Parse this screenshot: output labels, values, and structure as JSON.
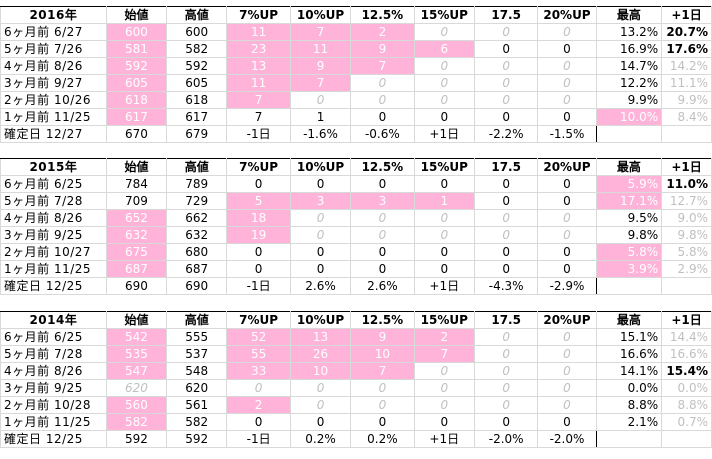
{
  "headers": [
    "始値",
    "高値",
    "7%UP",
    "10%UP",
    "12.5%",
    "15%UP",
    "17.5",
    "20%UP",
    "最高",
    "+1日"
  ],
  "blocks": [
    {
      "year": "2016年",
      "rows": [
        {
          "label": "6ヶ月前  6/27",
          "cells": [
            {
              "v": "600",
              "s": "pk"
            },
            {
              "v": "600"
            },
            {
              "v": "11",
              "s": "pk"
            },
            {
              "v": "7",
              "s": "pk"
            },
            {
              "v": "2",
              "s": "pk"
            },
            {
              "v": "0",
              "s": "it"
            },
            {
              "v": "0",
              "s": "it"
            },
            {
              "v": "0",
              "s": "it"
            },
            {
              "v": "13.2%",
              "s": "rt"
            },
            {
              "v": "20.7%",
              "s": "bd rt"
            }
          ]
        },
        {
          "label": "5ヶ月前  7/26",
          "cells": [
            {
              "v": "581",
              "s": "pk"
            },
            {
              "v": "582"
            },
            {
              "v": "23",
              "s": "pk"
            },
            {
              "v": "11",
              "s": "pk"
            },
            {
              "v": "9",
              "s": "pk"
            },
            {
              "v": "6",
              "s": "pk"
            },
            {
              "v": "0"
            },
            {
              "v": "0"
            },
            {
              "v": "16.9%",
              "s": "rt"
            },
            {
              "v": "17.6%",
              "s": "bd rt"
            }
          ]
        },
        {
          "label": "4ヶ月前  8/26",
          "cells": [
            {
              "v": "592",
              "s": "pk"
            },
            {
              "v": "592"
            },
            {
              "v": "13",
              "s": "pk"
            },
            {
              "v": "9",
              "s": "pk"
            },
            {
              "v": "7",
              "s": "pk"
            },
            {
              "v": "0",
              "s": "it"
            },
            {
              "v": "0",
              "s": "it"
            },
            {
              "v": "0",
              "s": "it"
            },
            {
              "v": "14.7%",
              "s": "rt"
            },
            {
              "v": "14.2%",
              "s": "gr rt"
            }
          ]
        },
        {
          "label": "3ヶ月前  9/27",
          "cells": [
            {
              "v": "605",
              "s": "pk"
            },
            {
              "v": "605"
            },
            {
              "v": "11",
              "s": "pk"
            },
            {
              "v": "7",
              "s": "pk"
            },
            {
              "v": "0",
              "s": "it"
            },
            {
              "v": "0",
              "s": "it"
            },
            {
              "v": "0",
              "s": "it"
            },
            {
              "v": "0",
              "s": "it"
            },
            {
              "v": "12.2%",
              "s": "rt"
            },
            {
              "v": "11.1%",
              "s": "gr rt"
            }
          ]
        },
        {
          "label": "2ヶ月前 10/26",
          "cells": [
            {
              "v": "618",
              "s": "pk"
            },
            {
              "v": "618"
            },
            {
              "v": "7",
              "s": "pk"
            },
            {
              "v": "0",
              "s": "it"
            },
            {
              "v": "0",
              "s": "it"
            },
            {
              "v": "0",
              "s": "it"
            },
            {
              "v": "0",
              "s": "it"
            },
            {
              "v": "0",
              "s": "it"
            },
            {
              "v": "9.9%",
              "s": "rt"
            },
            {
              "v": "9.9%",
              "s": "gr rt"
            }
          ]
        },
        {
          "label": "1ヶ月前 11/25",
          "cells": [
            {
              "v": "617",
              "s": "pk"
            },
            {
              "v": "617"
            },
            {
              "v": "7",
              "s": "box"
            },
            {
              "v": "1",
              "s": "box"
            },
            {
              "v": "0"
            },
            {
              "v": "0"
            },
            {
              "v": "0"
            },
            {
              "v": "0"
            },
            {
              "v": "10.0%",
              "s": "pk rt"
            },
            {
              "v": "8.4%",
              "s": "gr rt"
            }
          ]
        }
      ],
      "final": {
        "label": "確定日  12/27",
        "cells": [
          "670",
          "679",
          "-1日",
          "-1.6%",
          "-0.6%",
          "+1日",
          "-2.2%",
          "-1.5%",
          "",
          ""
        ]
      }
    },
    {
      "year": "2015年",
      "rows": [
        {
          "label": "6ヶ月前  6/25",
          "cells": [
            {
              "v": "784"
            },
            {
              "v": "789"
            },
            {
              "v": "0"
            },
            {
              "v": "0"
            },
            {
              "v": "0"
            },
            {
              "v": "0"
            },
            {
              "v": "0"
            },
            {
              "v": "0"
            },
            {
              "v": "5.9%",
              "s": "pk rt"
            },
            {
              "v": "11.0%",
              "s": "bd rt"
            }
          ]
        },
        {
          "label": "5ヶ月前  7/28",
          "cells": [
            {
              "v": "709"
            },
            {
              "v": "729"
            },
            {
              "v": "5",
              "s": "pk"
            },
            {
              "v": "3",
              "s": "pk"
            },
            {
              "v": "3",
              "s": "pk"
            },
            {
              "v": "1",
              "s": "pk"
            },
            {
              "v": "0"
            },
            {
              "v": "0"
            },
            {
              "v": "17.1%",
              "s": "pk rt"
            },
            {
              "v": "12.7%",
              "s": "gr rt"
            }
          ]
        },
        {
          "label": "4ヶ月前  8/26",
          "cells": [
            {
              "v": "652",
              "s": "pk"
            },
            {
              "v": "662"
            },
            {
              "v": "18",
              "s": "pk"
            },
            {
              "v": "0",
              "s": "it"
            },
            {
              "v": "0",
              "s": "it"
            },
            {
              "v": "0",
              "s": "it"
            },
            {
              "v": "0",
              "s": "it"
            },
            {
              "v": "0",
              "s": "it"
            },
            {
              "v": "9.5%",
              "s": "rt"
            },
            {
              "v": "9.0%",
              "s": "gr rt"
            }
          ]
        },
        {
          "label": "3ヶ月前  9/25",
          "cells": [
            {
              "v": "632",
              "s": "pk"
            },
            {
              "v": "632"
            },
            {
              "v": "19",
              "s": "pk"
            },
            {
              "v": "0",
              "s": "it"
            },
            {
              "v": "0",
              "s": "it"
            },
            {
              "v": "0",
              "s": "it"
            },
            {
              "v": "0",
              "s": "it"
            },
            {
              "v": "0",
              "s": "it"
            },
            {
              "v": "9.8%",
              "s": "rt"
            },
            {
              "v": "9.8%",
              "s": "gr rt"
            }
          ]
        },
        {
          "label": "2ヶ月前 10/27",
          "cells": [
            {
              "v": "675",
              "s": "pk"
            },
            {
              "v": "680"
            },
            {
              "v": "0"
            },
            {
              "v": "0"
            },
            {
              "v": "0"
            },
            {
              "v": "0"
            },
            {
              "v": "0"
            },
            {
              "v": "0"
            },
            {
              "v": "5.8%",
              "s": "pk rt"
            },
            {
              "v": "5.8%",
              "s": "gr rt"
            }
          ]
        },
        {
          "label": "1ヶ月前 11/25",
          "cells": [
            {
              "v": "687",
              "s": "pk"
            },
            {
              "v": "687"
            },
            {
              "v": "0"
            },
            {
              "v": "0"
            },
            {
              "v": "0"
            },
            {
              "v": "0"
            },
            {
              "v": "0"
            },
            {
              "v": "0"
            },
            {
              "v": "3.9%",
              "s": "pk rt"
            },
            {
              "v": "2.9%",
              "s": "gr rt"
            }
          ]
        }
      ],
      "final": {
        "label": "確定日  12/25",
        "cells": [
          "690",
          "690",
          "-1日",
          "2.6%",
          "2.6%",
          "+1日",
          "-4.3%",
          "-2.9%",
          "",
          ""
        ]
      }
    },
    {
      "year": "2014年",
      "rows": [
        {
          "label": "6ヶ月前  6/25",
          "cells": [
            {
              "v": "542",
              "s": "pk"
            },
            {
              "v": "555"
            },
            {
              "v": "52",
              "s": "pk"
            },
            {
              "v": "13",
              "s": "pk"
            },
            {
              "v": "9",
              "s": "pk"
            },
            {
              "v": "2",
              "s": "pk"
            },
            {
              "v": "0",
              "s": "it"
            },
            {
              "v": "0",
              "s": "it"
            },
            {
              "v": "15.1%",
              "s": "rt"
            },
            {
              "v": "14.4%",
              "s": "gr rt"
            }
          ]
        },
        {
          "label": "5ヶ月前  7/28",
          "cells": [
            {
              "v": "535",
              "s": "pk"
            },
            {
              "v": "537"
            },
            {
              "v": "55",
              "s": "pk"
            },
            {
              "v": "26",
              "s": "pk"
            },
            {
              "v": "10",
              "s": "pk"
            },
            {
              "v": "7",
              "s": "pk"
            },
            {
              "v": "0",
              "s": "it"
            },
            {
              "v": "0",
              "s": "it"
            },
            {
              "v": "16.6%",
              "s": "rt"
            },
            {
              "v": "16.6%",
              "s": "gr rt"
            }
          ]
        },
        {
          "label": "4ヶ月前  8/26",
          "cells": [
            {
              "v": "547",
              "s": "pk"
            },
            {
              "v": "548"
            },
            {
              "v": "33",
              "s": "pk"
            },
            {
              "v": "10",
              "s": "pk"
            },
            {
              "v": "7",
              "s": "pk"
            },
            {
              "v": "0",
              "s": "it"
            },
            {
              "v": "0",
              "s": "it"
            },
            {
              "v": "0",
              "s": "it"
            },
            {
              "v": "14.1%",
              "s": "rt"
            },
            {
              "v": "15.4%",
              "s": "bd rt"
            }
          ]
        },
        {
          "label": "3ヶ月前  9/25",
          "cells": [
            {
              "v": "620",
              "s": "it"
            },
            {
              "v": "620"
            },
            {
              "v": "0",
              "s": "it"
            },
            {
              "v": "0",
              "s": "it"
            },
            {
              "v": "0",
              "s": "it"
            },
            {
              "v": "0",
              "s": "it"
            },
            {
              "v": "0",
              "s": "it"
            },
            {
              "v": "0",
              "s": "it"
            },
            {
              "v": "0.0%",
              "s": "rt"
            },
            {
              "v": "0.0%",
              "s": "gr rt"
            }
          ]
        },
        {
          "label": "2ヶ月前 10/28",
          "cells": [
            {
              "v": "560",
              "s": "pk"
            },
            {
              "v": "561"
            },
            {
              "v": "2",
              "s": "pk"
            },
            {
              "v": "0",
              "s": "it"
            },
            {
              "v": "0",
              "s": "it"
            },
            {
              "v": "0",
              "s": "it"
            },
            {
              "v": "0",
              "s": "it"
            },
            {
              "v": "0",
              "s": "it"
            },
            {
              "v": "8.8%",
              "s": "rt"
            },
            {
              "v": "8.8%",
              "s": "gr rt"
            }
          ]
        },
        {
          "label": "1ヶ月前 11/25",
          "cells": [
            {
              "v": "582",
              "s": "pk"
            },
            {
              "v": "582"
            },
            {
              "v": "0"
            },
            {
              "v": "0"
            },
            {
              "v": "0"
            },
            {
              "v": "0"
            },
            {
              "v": "0"
            },
            {
              "v": "0"
            },
            {
              "v": "2.1%",
              "s": "rt"
            },
            {
              "v": "0.7%",
              "s": "gr rt"
            }
          ]
        }
      ],
      "final": {
        "label": "確定日  12/25",
        "cells": [
          "592",
          "592",
          "-1日",
          "0.2%",
          "0.2%",
          "+1日",
          "-2.0%",
          "-2.0%",
          "",
          ""
        ]
      }
    }
  ],
  "colors": {
    "highlight": "#ffb3d9",
    "grid": "#d9d9d9",
    "muted": "#c0c0c0"
  }
}
